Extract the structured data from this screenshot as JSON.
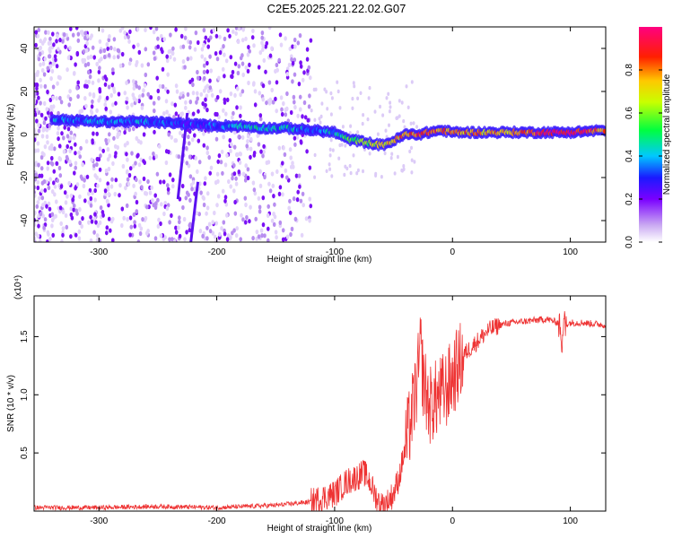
{
  "title": "C2E5.2025.221.22.02.G07",
  "chart_data": [
    {
      "type": "heatmap",
      "xlabel": "Height of straight line (km)",
      "ylabel": "Frequency (Hz)",
      "xlim": [
        -355,
        130
      ],
      "ylim": [
        -50,
        50
      ],
      "xticks": [
        -300,
        -200,
        -100,
        0,
        100
      ],
      "yticks": [
        -40,
        -20,
        0,
        20,
        40
      ],
      "colorbar": {
        "label": "Normalized spectral amplitude",
        "range": [
          0,
          1
        ],
        "ticks": [
          0.0,
          0.2,
          0.4,
          0.6,
          0.8
        ],
        "tick_labels": [
          "0.0",
          "0.2",
          "0.4",
          "0.6",
          "0.8"
        ]
      },
      "ridge": {
        "x": [
          -340,
          -300,
          -260,
          -230,
          -200,
          -180,
          -160,
          -140,
          -120,
          -100,
          -90,
          -80,
          -70,
          -60,
          -50,
          -40,
          -30,
          -20,
          -10,
          0,
          20,
          40,
          60,
          80,
          100,
          130
        ],
        "y": [
          7,
          6,
          6,
          5,
          4,
          4,
          3,
          3,
          2,
          1,
          -2,
          -3,
          -4,
          -5,
          -3,
          0,
          0,
          1,
          2,
          1,
          1,
          1,
          1,
          1,
          1,
          2
        ],
        "amplitude": [
          0.35,
          0.35,
          0.35,
          0.3,
          0.3,
          0.4,
          0.4,
          0.4,
          0.35,
          0.4,
          0.5,
          0.55,
          0.6,
          0.7,
          0.75,
          0.8,
          0.85,
          0.85,
          0.8,
          0.8,
          0.75,
          0.75,
          0.8,
          0.9,
          0.95,
          0.8
        ]
      }
    },
    {
      "type": "line",
      "xlabel": "Height of straight line (km)",
      "ylabel": "SNR (10 * v/v)",
      "scale_label": "(x10⁴)",
      "xlim": [
        -355,
        130
      ],
      "ylim": [
        0,
        1.85
      ],
      "xticks": [
        -300,
        -200,
        -100,
        0,
        100
      ],
      "yticks": [
        0.5,
        1.0,
        1.5
      ],
      "ytick_labels": [
        "0.5",
        "1.0",
        "1.5"
      ],
      "series": [
        {
          "color": "#ee3333",
          "x": [
            -355,
            -300,
            -250,
            -200,
            -150,
            -120,
            -100,
            -90,
            -80,
            -75,
            -70,
            -65,
            -60,
            -55,
            -50,
            -45,
            -40,
            -35,
            -30,
            -27,
            -25,
            -20,
            -15,
            -10,
            -5,
            0,
            5,
            10,
            20,
            30,
            40,
            50,
            60,
            70,
            80,
            90,
            93,
            95,
            100,
            110,
            120,
            130
          ],
          "y": [
            0.03,
            0.03,
            0.04,
            0.03,
            0.05,
            0.08,
            0.15,
            0.25,
            0.3,
            0.33,
            0.25,
            0.12,
            0.05,
            0.08,
            0.15,
            0.3,
            0.55,
            0.8,
            1.1,
            1.4,
            1.15,
            0.9,
            0.95,
            1.0,
            1.05,
            1.15,
            1.25,
            1.35,
            1.45,
            1.55,
            1.6,
            1.62,
            1.63,
            1.64,
            1.65,
            1.62,
            1.5,
            1.6,
            1.62,
            1.62,
            1.61,
            1.6
          ]
        }
      ]
    }
  ]
}
